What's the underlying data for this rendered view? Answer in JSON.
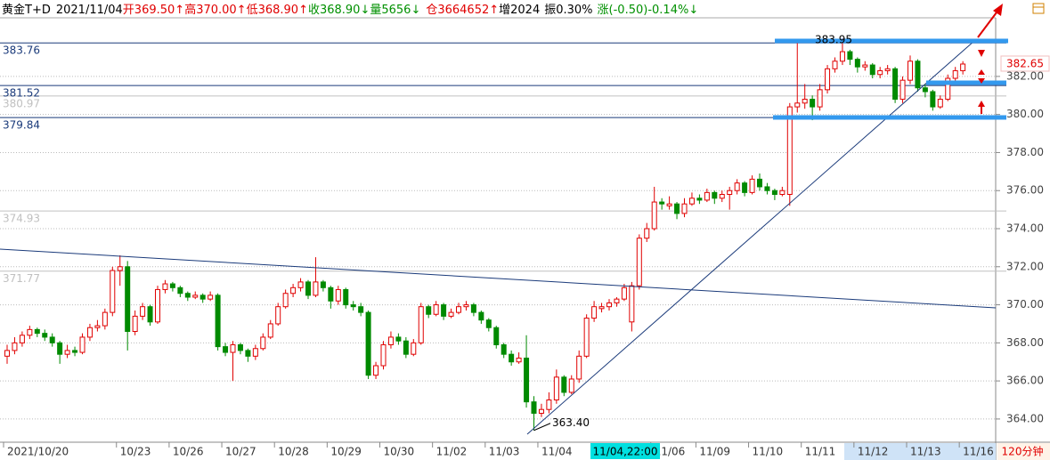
{
  "chart_data": {
    "type": "candlestick",
    "header": [
      {
        "text": "黄金T+D",
        "color": "#000000"
      },
      {
        "text": "2021/11/04",
        "color": "#000000"
      },
      {
        "text": "开369.50↑",
        "color": "#e00000"
      },
      {
        "text": "高370.00↑",
        "color": "#e00000"
      },
      {
        "text": "低368.90↑",
        "color": "#e00000"
      },
      {
        "text": "收368.90↓",
        "color": "#009000"
      },
      {
        "text": "量5656↓",
        "color": "#009000"
      },
      {
        "text": "仓3664652↑",
        "color": "#e00000"
      },
      {
        "text": "增2024",
        "color": "#000000"
      },
      {
        "text": "振0.30%",
        "color": "#000000"
      },
      {
        "text": "涨(-0.50)-0.14%↓",
        "color": "#009000"
      }
    ],
    "up_color": "#e00000",
    "down_color": "#008a00",
    "ylim": [
      362.78,
      385.08
    ],
    "yticks": [
      {
        "value": 364,
        "label": "364.00"
      },
      {
        "value": 366,
        "label": "366.00"
      },
      {
        "value": 368,
        "label": "368.00"
      },
      {
        "value": 370,
        "label": "370.00"
      },
      {
        "value": 372,
        "label": "372.00"
      },
      {
        "value": 374,
        "label": "374.00"
      },
      {
        "value": 376,
        "label": "376.00"
      },
      {
        "value": 378,
        "label": "378.00"
      },
      {
        "value": 380,
        "label": "380.00"
      },
      {
        "value": 382,
        "label": "382.00"
      }
    ],
    "grid": true,
    "levels": [
      {
        "value": 383.76,
        "color": "#1a3a7a"
      },
      {
        "value": 381.52,
        "color": "#1a3a7a"
      },
      {
        "value": 380.97,
        "color": "#c0c0c0"
      },
      {
        "value": 379.84,
        "color": "#1a3a7a"
      },
      {
        "value": 374.93,
        "color": "#c0c0c0"
      },
      {
        "value": 371.77,
        "color": "#c0c0c0"
      }
    ],
    "annotations": [
      {
        "value": 363.4,
        "label": "363.40"
      },
      {
        "value": 383.95,
        "label": "383.95"
      }
    ],
    "cursor_label": "11/04,22:00",
    "period": "120分钟",
    "categories": [
      "2021/10/20",
      null,
      null,
      null,
      null,
      null,
      null,
      null,
      null,
      null,
      null,
      null,
      null,
      null,
      null,
      "10/23",
      null,
      null,
      null,
      null,
      null,
      null,
      "10/26",
      null,
      null,
      null,
      null,
      null,
      null,
      "10/27",
      null,
      null,
      null,
      null,
      null,
      null,
      "10/28",
      null,
      null,
      null,
      null,
      null,
      null,
      "10/29",
      null,
      null,
      null,
      null,
      null,
      null,
      "10/30",
      null,
      null,
      null,
      null,
      null,
      null,
      "11/02",
      null,
      null,
      null,
      null,
      null,
      null,
      "11/03",
      null,
      null,
      null,
      null,
      null,
      null,
      "11/04",
      null,
      null,
      null,
      null,
      null,
      null,
      null,
      null,
      null,
      null,
      null,
      null,
      null,
      null,
      "11/06",
      null,
      null,
      null,
      null,
      null,
      "11/09",
      null,
      null,
      null,
      null,
      null,
      null,
      "11/10",
      null,
      null,
      null,
      null,
      null,
      null,
      "11/11",
      null,
      null,
      null,
      null,
      null,
      null,
      "11/12",
      null,
      null,
      null,
      null,
      null,
      null,
      "11/13",
      null,
      null,
      null,
      null,
      null,
      null,
      "11/16"
    ],
    "candles": [
      [
        367.3,
        367.9,
        366.9,
        367.6
      ],
      [
        367.6,
        368.3,
        367.4,
        368.0
      ],
      [
        368.0,
        368.6,
        367.8,
        368.4
      ],
      [
        368.4,
        368.9,
        368.2,
        368.7
      ],
      [
        368.7,
        368.8,
        368.3,
        368.5
      ],
      [
        368.5,
        368.7,
        368.1,
        368.3
      ],
      [
        368.3,
        368.5,
        367.8,
        368.0
      ],
      [
        368.0,
        368.1,
        366.9,
        367.4
      ],
      [
        367.4,
        367.9,
        367.2,
        367.6
      ],
      [
        367.6,
        367.8,
        367.3,
        367.5
      ],
      [
        367.5,
        368.5,
        367.4,
        368.3
      ],
      [
        368.3,
        369.0,
        368.1,
        368.8
      ],
      [
        368.8,
        369.2,
        368.6,
        368.9
      ],
      [
        368.9,
        369.8,
        368.7,
        369.6
      ],
      [
        369.6,
        372.0,
        369.4,
        371.8
      ],
      [
        371.8,
        372.6,
        371.0,
        372.0
      ],
      [
        372.0,
        372.3,
        367.6,
        368.6
      ],
      [
        368.6,
        369.7,
        368.4,
        369.4
      ],
      [
        369.4,
        370.1,
        369.2,
        369.9
      ],
      [
        369.9,
        370.0,
        368.9,
        369.1
      ],
      [
        369.1,
        371.0,
        369.0,
        370.8
      ],
      [
        370.8,
        371.3,
        370.6,
        371.1
      ],
      [
        371.1,
        371.2,
        370.7,
        370.9
      ],
      [
        370.9,
        371.0,
        370.4,
        370.6
      ],
      [
        370.6,
        370.7,
        370.2,
        370.4
      ],
      [
        370.4,
        370.7,
        370.3,
        370.5
      ],
      [
        370.5,
        370.6,
        370.1,
        370.3
      ],
      [
        370.3,
        370.7,
        370.2,
        370.5
      ],
      [
        370.5,
        370.6,
        367.6,
        367.8
      ],
      [
        367.8,
        368.0,
        367.3,
        367.5
      ],
      [
        367.5,
        368.1,
        366.0,
        367.9
      ],
      [
        367.9,
        368.0,
        367.4,
        367.6
      ],
      [
        367.6,
        367.7,
        367.0,
        367.3
      ],
      [
        367.3,
        367.9,
        367.1,
        367.7
      ],
      [
        367.7,
        368.5,
        367.6,
        368.3
      ],
      [
        368.3,
        369.2,
        368.2,
        369.0
      ],
      [
        369.0,
        370.1,
        368.9,
        369.9
      ],
      [
        369.9,
        370.8,
        369.8,
        370.6
      ],
      [
        370.6,
        371.1,
        370.4,
        370.9
      ],
      [
        370.9,
        371.4,
        370.7,
        371.2
      ],
      [
        371.2,
        371.3,
        370.3,
        370.5
      ],
      [
        370.5,
        372.5,
        370.4,
        371.2
      ],
      [
        371.2,
        371.3,
        370.7,
        370.9
      ],
      [
        370.9,
        371.0,
        369.8,
        370.2
      ],
      [
        370.2,
        371.0,
        370.0,
        370.8
      ],
      [
        370.8,
        370.9,
        369.8,
        370.0
      ],
      [
        370.0,
        370.2,
        369.7,
        369.9
      ],
      [
        369.9,
        370.1,
        369.4,
        369.6
      ],
      [
        369.6,
        369.7,
        366.1,
        366.3
      ],
      [
        366.3,
        367.0,
        366.1,
        366.8
      ],
      [
        366.8,
        368.1,
        366.6,
        367.9
      ],
      [
        367.9,
        368.6,
        367.7,
        368.3
      ],
      [
        368.3,
        368.5,
        367.9,
        368.1
      ],
      [
        368.1,
        368.3,
        367.2,
        367.4
      ],
      [
        367.4,
        368.2,
        367.3,
        368.0
      ],
      [
        368.0,
        370.1,
        367.9,
        369.9
      ],
      [
        369.9,
        370.0,
        369.3,
        369.5
      ],
      [
        369.5,
        370.2,
        369.4,
        370.0
      ],
      [
        370.0,
        370.1,
        369.2,
        369.4
      ],
      [
        369.4,
        369.8,
        369.3,
        369.6
      ],
      [
        369.6,
        370.1,
        369.5,
        369.9
      ],
      [
        369.9,
        370.2,
        369.7,
        370.0
      ],
      [
        370.0,
        370.1,
        369.4,
        369.6
      ],
      [
        369.6,
        369.7,
        369.0,
        369.2
      ],
      [
        369.2,
        369.3,
        368.6,
        368.8
      ],
      [
        368.8,
        368.9,
        367.7,
        367.9
      ],
      [
        367.9,
        368.0,
        367.2,
        367.4
      ],
      [
        367.4,
        367.6,
        366.8,
        367.0
      ],
      [
        367.0,
        367.5,
        366.9,
        367.2
      ],
      [
        367.2,
        368.4,
        364.6,
        364.9
      ],
      [
        364.9,
        365.2,
        363.4,
        364.3
      ],
      [
        364.3,
        364.8,
        364.1,
        364.5
      ],
      [
        364.5,
        365.4,
        364.3,
        365.0
      ],
      [
        365.0,
        366.6,
        364.8,
        366.2
      ],
      [
        366.2,
        366.3,
        365.2,
        365.4
      ],
      [
        365.4,
        366.3,
        365.3,
        366.1
      ],
      [
        366.1,
        367.6,
        365.9,
        367.3
      ],
      [
        367.3,
        369.5,
        367.2,
        369.3
      ],
      [
        369.3,
        370.2,
        369.1,
        369.9
      ],
      [
        369.8,
        370.1,
        369.6,
        369.9
      ],
      [
        369.9,
        370.3,
        369.7,
        370.1
      ],
      [
        370.1,
        370.4,
        369.9,
        370.3
      ],
      [
        370.3,
        371.1,
        370.2,
        370.9
      ],
      [
        369.1,
        371.2,
        368.6,
        371.0
      ],
      [
        371.0,
        373.7,
        370.8,
        373.5
      ],
      [
        373.5,
        374.3,
        373.3,
        374.0
      ],
      [
        374.0,
        376.2,
        373.9,
        375.4
      ],
      [
        375.4,
        375.6,
        375.0,
        375.3
      ],
      [
        375.2,
        375.7,
        375.0,
        375.3
      ],
      [
        375.3,
        375.4,
        374.5,
        374.8
      ],
      [
        374.8,
        375.6,
        374.6,
        375.3
      ],
      [
        375.3,
        375.9,
        375.2,
        375.6
      ],
      [
        375.6,
        375.8,
        375.3,
        375.5
      ],
      [
        375.5,
        376.1,
        375.4,
        375.9
      ],
      [
        375.9,
        376.0,
        375.3,
        375.6
      ],
      [
        375.6,
        376.0,
        375.4,
        375.8
      ],
      [
        375.8,
        376.2,
        375.0,
        376.0
      ],
      [
        376.0,
        376.6,
        375.8,
        376.4
      ],
      [
        376.4,
        376.5,
        375.7,
        375.9
      ],
      [
        375.9,
        376.8,
        375.8,
        376.6
      ],
      [
        376.6,
        376.9,
        376.0,
        376.2
      ],
      [
        376.2,
        376.4,
        375.8,
        376.0
      ],
      [
        376.0,
        376.1,
        375.5,
        375.8
      ],
      [
        375.8,
        376.2,
        375.7,
        376.0
      ],
      [
        375.8,
        380.6,
        375.2,
        380.4
      ],
      [
        380.4,
        383.95,
        380.1,
        380.6
      ],
      [
        380.6,
        381.6,
        380.3,
        380.8
      ],
      [
        380.8,
        381.0,
        379.7,
        380.4
      ],
      [
        380.4,
        381.6,
        380.2,
        381.3
      ],
      [
        381.3,
        382.6,
        381.1,
        382.4
      ],
      [
        382.4,
        383.0,
        382.2,
        382.8
      ],
      [
        382.8,
        384.0,
        382.6,
        383.3
      ],
      [
        383.3,
        383.4,
        382.6,
        382.9
      ],
      [
        382.9,
        383.0,
        382.2,
        382.5
      ],
      [
        382.5,
        382.8,
        382.3,
        382.6
      ],
      [
        382.6,
        382.7,
        381.9,
        382.1
      ],
      [
        382.1,
        382.5,
        381.9,
        382.3
      ],
      [
        382.3,
        382.6,
        382.1,
        382.4
      ],
      [
        382.4,
        382.5,
        380.6,
        380.8
      ],
      [
        380.8,
        382.0,
        380.6,
        381.8
      ],
      [
        381.8,
        383.1,
        381.6,
        382.8
      ],
      [
        382.8,
        382.9,
        381.2,
        381.4
      ],
      [
        381.4,
        381.6,
        380.9,
        381.2
      ],
      [
        381.2,
        381.3,
        380.2,
        380.4
      ],
      [
        380.4,
        381.0,
        380.3,
        380.8
      ],
      [
        380.8,
        382.1,
        380.7,
        381.9
      ],
      [
        381.9,
        382.5,
        381.7,
        382.3
      ],
      [
        382.3,
        382.8,
        382.1,
        382.65
      ]
    ]
  }
}
